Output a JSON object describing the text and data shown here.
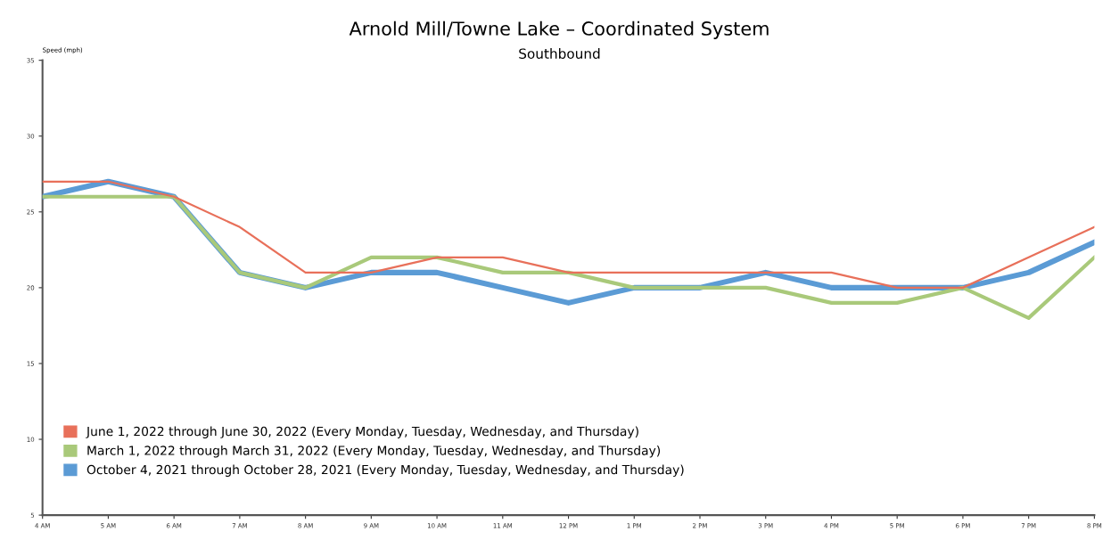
{
  "chart_data": {
    "type": "line",
    "title": "Arnold Mill/Towne Lake – Coordinated System",
    "subtitle": "Southbound",
    "ylabel": "Speed (mph)",
    "categories": [
      "4 AM",
      "5 AM",
      "6 AM",
      "7 AM",
      "8 AM",
      "9 AM",
      "10 AM",
      "11 AM",
      "12 PM",
      "1 PM",
      "2 PM",
      "3 PM",
      "4 PM",
      "5 PM",
      "6 PM",
      "7 PM",
      "8 PM"
    ],
    "ylim": [
      5,
      35
    ],
    "yticks": [
      5,
      10,
      15,
      20,
      25,
      30,
      35
    ],
    "grid": false,
    "legend": "bottom left",
    "marker": "none",
    "line_style": "solid",
    "series": [
      {
        "name": "June 1, 2022 through June 30, 2022 (Every Monday, Tuesday, Wednesday, and Thursday)",
        "color": "#e8705a",
        "values": [
          27,
          27,
          26,
          24,
          21,
          21,
          22,
          22,
          21,
          21,
          21,
          21,
          21,
          20,
          20,
          22,
          24
        ]
      },
      {
        "name": "March 1, 2022 through March 31, 2022 (Every Monday, Tuesday, Wednesday, and Thursday)",
        "color": "#a9c97a",
        "values": [
          26,
          26,
          26,
          21,
          20,
          22,
          22,
          21,
          21,
          20,
          20,
          20,
          19,
          19,
          20,
          18,
          22
        ]
      },
      {
        "name": "October 4, 2021 through October 28, 2021 (Every Monday, Tuesday, Wednesday, and Thursday)",
        "color": "#5b9bd5",
        "values": [
          26,
          27,
          26,
          21,
          20,
          21,
          21,
          20,
          19,
          20,
          20,
          21,
          20,
          20,
          20,
          21,
          23
        ]
      }
    ]
  }
}
